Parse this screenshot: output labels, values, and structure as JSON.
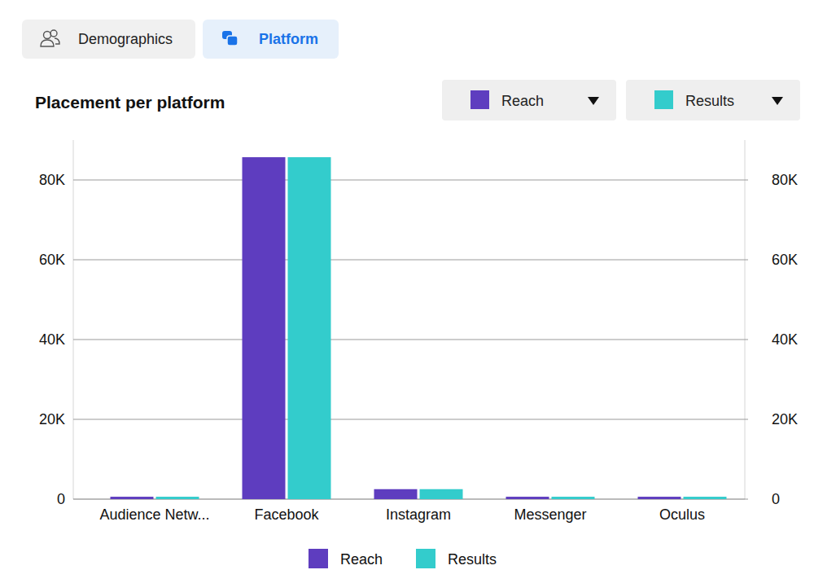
{
  "tabs": [
    {
      "label": "Demographics",
      "active": false
    },
    {
      "label": "Platform",
      "active": true
    }
  ],
  "chart_data": {
    "type": "bar",
    "title": "Placement per platform",
    "categories": [
      "Audience Netw...",
      "Facebook",
      "Instagram",
      "Messenger",
      "Oculus"
    ],
    "series": [
      {
        "name": "Reach",
        "color": "#5e3dbf",
        "values": [
          600,
          85700,
          2500,
          600,
          600
        ]
      },
      {
        "name": "Results",
        "color": "#33cccc",
        "axis": "y2",
        "values": [
          600,
          85700,
          2500,
          600,
          600
        ]
      }
    ],
    "ylim": [
      0,
      90000
    ],
    "yticks": [
      0,
      {
        "value": 20000,
        "label": "20K"
      },
      {
        "value": 40000,
        "label": "40K"
      },
      {
        "value": 60000,
        "label": "60K"
      },
      {
        "value": 80000,
        "label": "80K"
      }
    ],
    "y2lim": [
      0,
      90000
    ],
    "y2ticks": [
      0,
      {
        "value": 20000,
        "label": "20K"
      },
      {
        "value": 40000,
        "label": "40K"
      },
      {
        "value": 60000,
        "label": "60K"
      },
      {
        "value": 80000,
        "label": "80K"
      }
    ],
    "grid": true,
    "legend": "bottom"
  }
}
